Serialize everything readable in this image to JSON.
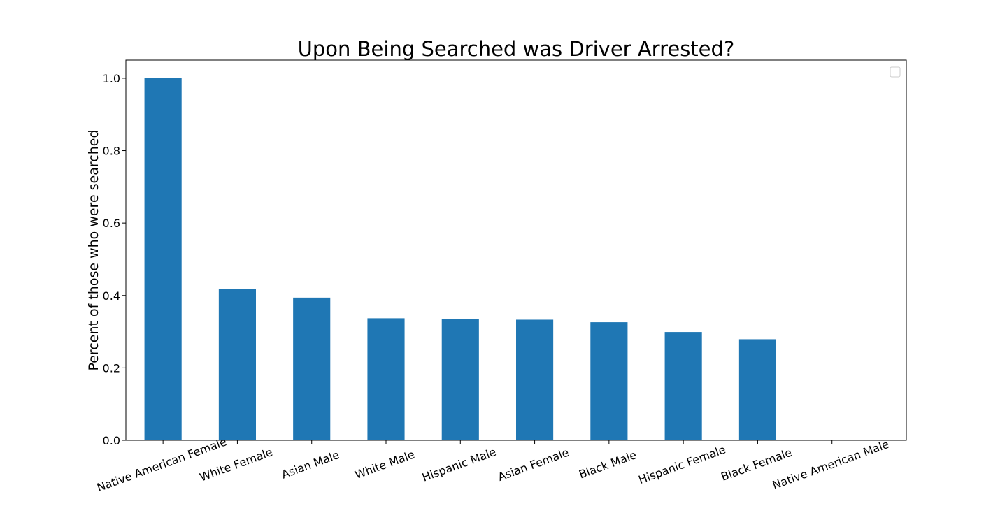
{
  "chart_data": {
    "type": "bar",
    "title": "Upon Being Searched was Driver Arrested?",
    "xlabel": "",
    "ylabel": "Percent of those who were searched",
    "categories": [
      "Native American Female",
      "White Female",
      "Asian Male",
      "White Male",
      "Hispanic Male",
      "Asian Female",
      "Black Male",
      "Hispanic Female",
      "Black Female",
      "Native American Male"
    ],
    "values": [
      1.0,
      0.418,
      0.394,
      0.337,
      0.335,
      0.333,
      0.326,
      0.299,
      0.279,
      0.0
    ],
    "ylim": [
      0,
      1.05
    ],
    "yticks": [
      0.0,
      0.2,
      0.4,
      0.6,
      0.8,
      1.0
    ],
    "ytick_labels": [
      "0.0",
      "0.2",
      "0.4",
      "0.6",
      "0.8",
      "1.0"
    ],
    "bar_color": "#1f77b4",
    "grid": false,
    "legend": {
      "placement": "top-right",
      "entries": []
    }
  }
}
